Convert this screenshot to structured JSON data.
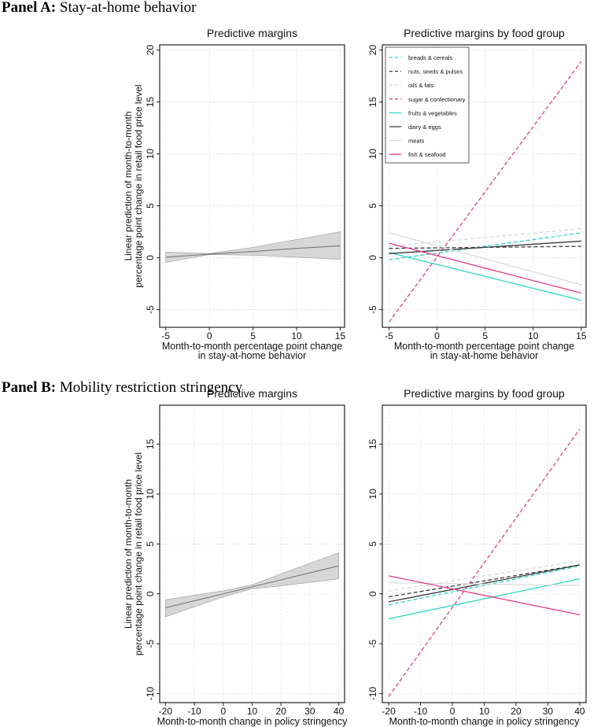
{
  "panels": [
    {
      "label": "Panel A:",
      "title": "Stay-at-home behavior"
    },
    {
      "label": "Panel B:",
      "title": "Mobility restriction stringency"
    }
  ],
  "colors": {
    "cyan": "#2fd6c3",
    "dark": "#3a3a3a",
    "light": "#d8dcdc",
    "pink": "#e33a8c",
    "band": "#d3d3d3",
    "margin_line": "#777777"
  },
  "chart_data": [
    {
      "type": "line",
      "title": "Predictive margins",
      "xlabel": [
        "Month-to-month percentage point change",
        "in stay-at-home behavior"
      ],
      "ylabel": [
        "Linear prediction of month-to-month",
        "percentage point change in retail food price level"
      ],
      "xticks": [
        -5,
        0,
        5,
        10,
        15
      ],
      "yticks": [
        -5,
        0,
        5,
        10,
        15,
        20
      ],
      "xlim": [
        -5.7,
        15.5
      ],
      "ylim": [
        -6.7,
        20.5
      ],
      "grid": true,
      "series": [
        {
          "name": "predictive margin",
          "x": [
            -5,
            0,
            5,
            10,
            15
          ],
          "y": [
            0.05,
            0.35,
            0.6,
            0.9,
            1.15
          ],
          "ci_low": [
            -0.45,
            0.3,
            0.25,
            0.05,
            -0.15
          ],
          "ci_high": [
            0.55,
            0.4,
            1.0,
            1.75,
            2.5
          ]
        }
      ]
    },
    {
      "type": "line",
      "title": "Predictive margins by food group",
      "xlabel": [
        "Month-to-month percentage point change",
        "in stay-at-home behavior"
      ],
      "xticks": [
        -5,
        0,
        5,
        10,
        15
      ],
      "yticks": [
        -5,
        0,
        5,
        10,
        15,
        20
      ],
      "xlim": [
        -5.7,
        15.5
      ],
      "ylim": [
        -6.7,
        20.5
      ],
      "grid": true,
      "legend": "top-left",
      "series": [
        {
          "name": "breads & cereals",
          "color": "#2fd6c3",
          "dashed": true,
          "x": [
            -5,
            15
          ],
          "y": [
            -0.2,
            2.4
          ]
        },
        {
          "name": "nuts, seeds & pulses",
          "color": "#3a3a3a",
          "dashed": true,
          "x": [
            -5,
            15
          ],
          "y": [
            0.9,
            1.1
          ]
        },
        {
          "name": "oils & fats",
          "color": "#d8dcdc",
          "dashed": true,
          "x": [
            -5,
            15
          ],
          "y": [
            1.1,
            2.8
          ]
        },
        {
          "name": "sugar & confectionary",
          "color": "#e33a8c",
          "dashed": true,
          "x": [
            -5,
            15
          ],
          "y": [
            -6.2,
            18.9
          ]
        },
        {
          "name": "fruits & vegetables",
          "color": "#2fd6c3",
          "dashed": false,
          "x": [
            -5,
            15
          ],
          "y": [
            0.5,
            -4.1
          ]
        },
        {
          "name": "dairy & eggs",
          "color": "#3a3a3a",
          "dashed": false,
          "x": [
            -5,
            15
          ],
          "y": [
            0.4,
            1.6
          ]
        },
        {
          "name": "meats",
          "color": "#d8dcdc",
          "dashed": false,
          "x": [
            -5,
            15
          ],
          "y": [
            2.4,
            -2.6
          ]
        },
        {
          "name": "fish & seafood",
          "color": "#e33a8c",
          "dashed": false,
          "x": [
            -5,
            15
          ],
          "y": [
            1.4,
            -3.4
          ]
        }
      ]
    },
    {
      "type": "line",
      "title": "Predictive margins",
      "xlabel": [
        "Month-to-month change in policy stringency"
      ],
      "ylabel": [
        "Linear prediction of month-to-month",
        "percentage point change in retail food price level"
      ],
      "xticks": [
        -20,
        -10,
        0,
        10,
        20,
        30,
        40
      ],
      "yticks": [
        -10,
        -5,
        0,
        5,
        10,
        15
      ],
      "xlim": [
        -22,
        42
      ],
      "ylim": [
        -10.9,
        18.9
      ],
      "grid": true,
      "series": [
        {
          "name": "predictive margin",
          "x": [
            -20,
            0,
            10,
            20,
            40
          ],
          "y": [
            -1.4,
            0,
            0.7,
            1.4,
            2.8
          ],
          "ci_low": [
            -2.3,
            -0.3,
            0.5,
            0.8,
            1.5
          ],
          "ci_high": [
            -0.6,
            0.3,
            0.9,
            2.0,
            4.1
          ]
        }
      ]
    },
    {
      "type": "line",
      "title": "Predictive margins by food group",
      "xlabel": [
        "Month-to-month change in policy stringency"
      ],
      "xticks": [
        -20,
        -10,
        0,
        10,
        20,
        30,
        40
      ],
      "yticks": [
        -10,
        -5,
        0,
        5,
        10,
        15
      ],
      "xlim": [
        -22,
        42
      ],
      "ylim": [
        -10.9,
        18.9
      ],
      "grid": true,
      "series": [
        {
          "name": "breads & cereals",
          "color": "#2fd6c3",
          "dashed": true,
          "x": [
            -20,
            40
          ],
          "y": [
            -1.1,
            2.8
          ]
        },
        {
          "name": "nuts, seeds & pulses",
          "color": "#3a3a3a",
          "dashed": true,
          "x": [
            -20,
            40
          ],
          "y": [
            -0.3,
            2.9
          ]
        },
        {
          "name": "oils & fats",
          "color": "#d8dcdc",
          "dashed": true,
          "x": [
            -20,
            40
          ],
          "y": [
            0.3,
            3.3
          ]
        },
        {
          "name": "sugar & confectionary",
          "color": "#e33a8c",
          "dashed": true,
          "x": [
            -20,
            40
          ],
          "y": [
            -10.3,
            16.5
          ]
        },
        {
          "name": "fruits & vegetables",
          "color": "#2fd6c3",
          "dashed": false,
          "x": [
            -20,
            40
          ],
          "y": [
            -2.5,
            1.5
          ]
        },
        {
          "name": "dairy & eggs",
          "color": "#3a3a3a",
          "dashed": false,
          "x": [
            -20,
            40
          ],
          "y": [
            -0.8,
            2.9
          ]
        },
        {
          "name": "meats",
          "color": "#d8dcdc",
          "dashed": false,
          "x": [
            -20,
            40
          ],
          "y": [
            1.1,
            0.85
          ]
        },
        {
          "name": "fish & seafood",
          "color": "#e33a8c",
          "dashed": false,
          "x": [
            -20,
            40
          ],
          "y": [
            1.8,
            -2.1
          ]
        }
      ]
    }
  ]
}
